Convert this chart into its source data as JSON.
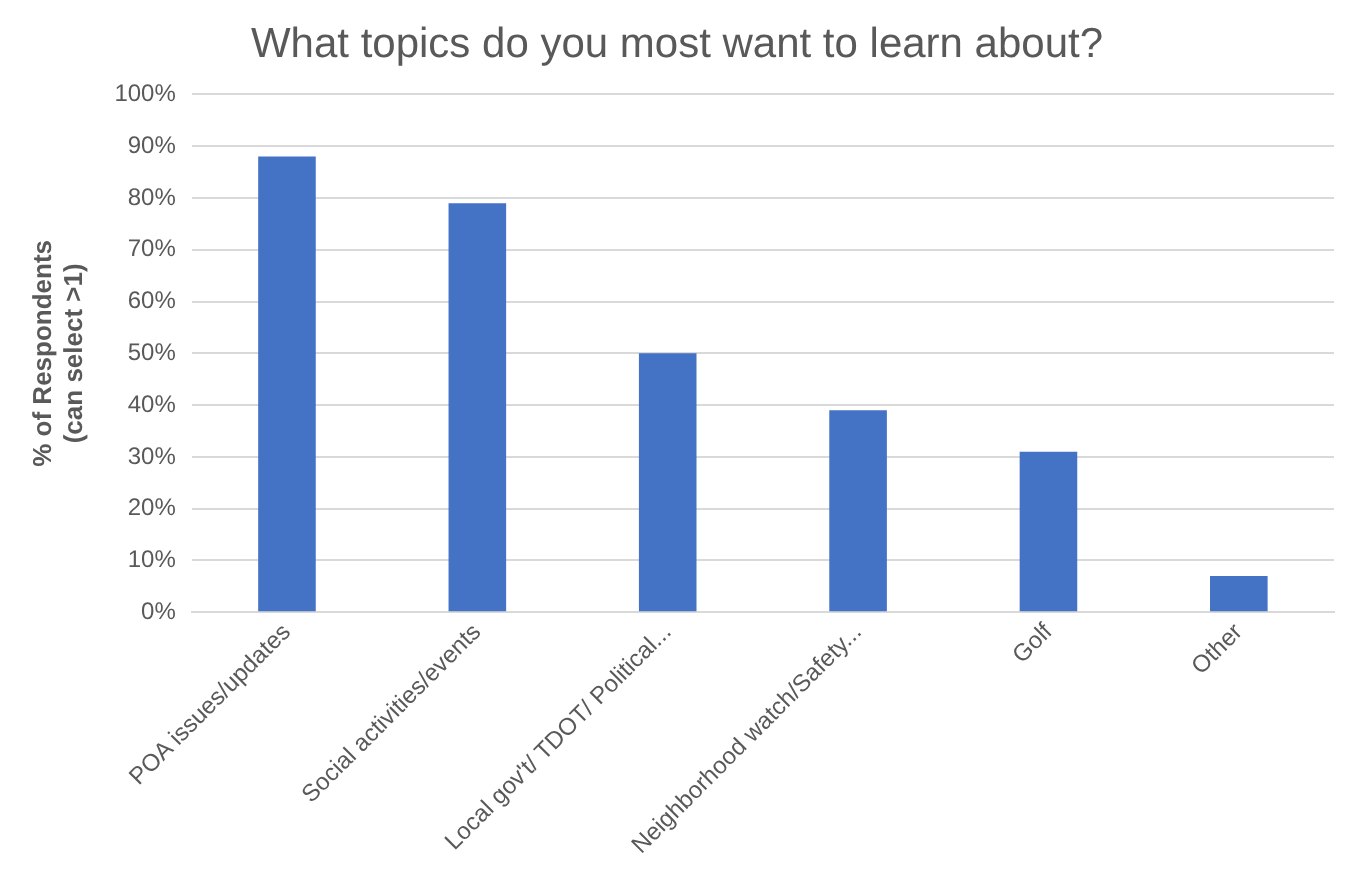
{
  "chart_data": {
    "type": "bar",
    "title": "What topics do you most want to learn about?",
    "ylabel": "% of Respondents\n(can select >1)",
    "categories": [
      "POA issues/updates",
      "Social activities/events",
      "Local gov't/ TDOT/ Political...",
      "Neighborhood watch/Safety...",
      "Golf",
      "Other"
    ],
    "values": [
      88,
      79,
      50,
      39,
      31,
      7
    ],
    "color": "#4472c4",
    "ylim": [
      0,
      100
    ],
    "yticks": [
      {
        "value": 0,
        "label": "0%"
      },
      {
        "value": 10,
        "label": "10%"
      },
      {
        "value": 20,
        "label": "20%"
      },
      {
        "value": 30,
        "label": "30%"
      },
      {
        "value": 40,
        "label": "40%"
      },
      {
        "value": 50,
        "label": "50%"
      },
      {
        "value": 60,
        "label": "60%"
      },
      {
        "value": 70,
        "label": "70%"
      },
      {
        "value": 80,
        "label": "80%"
      },
      {
        "value": 90,
        "label": "90%"
      },
      {
        "value": 100,
        "label": "100%"
      }
    ],
    "grid": "y",
    "legend": false
  }
}
